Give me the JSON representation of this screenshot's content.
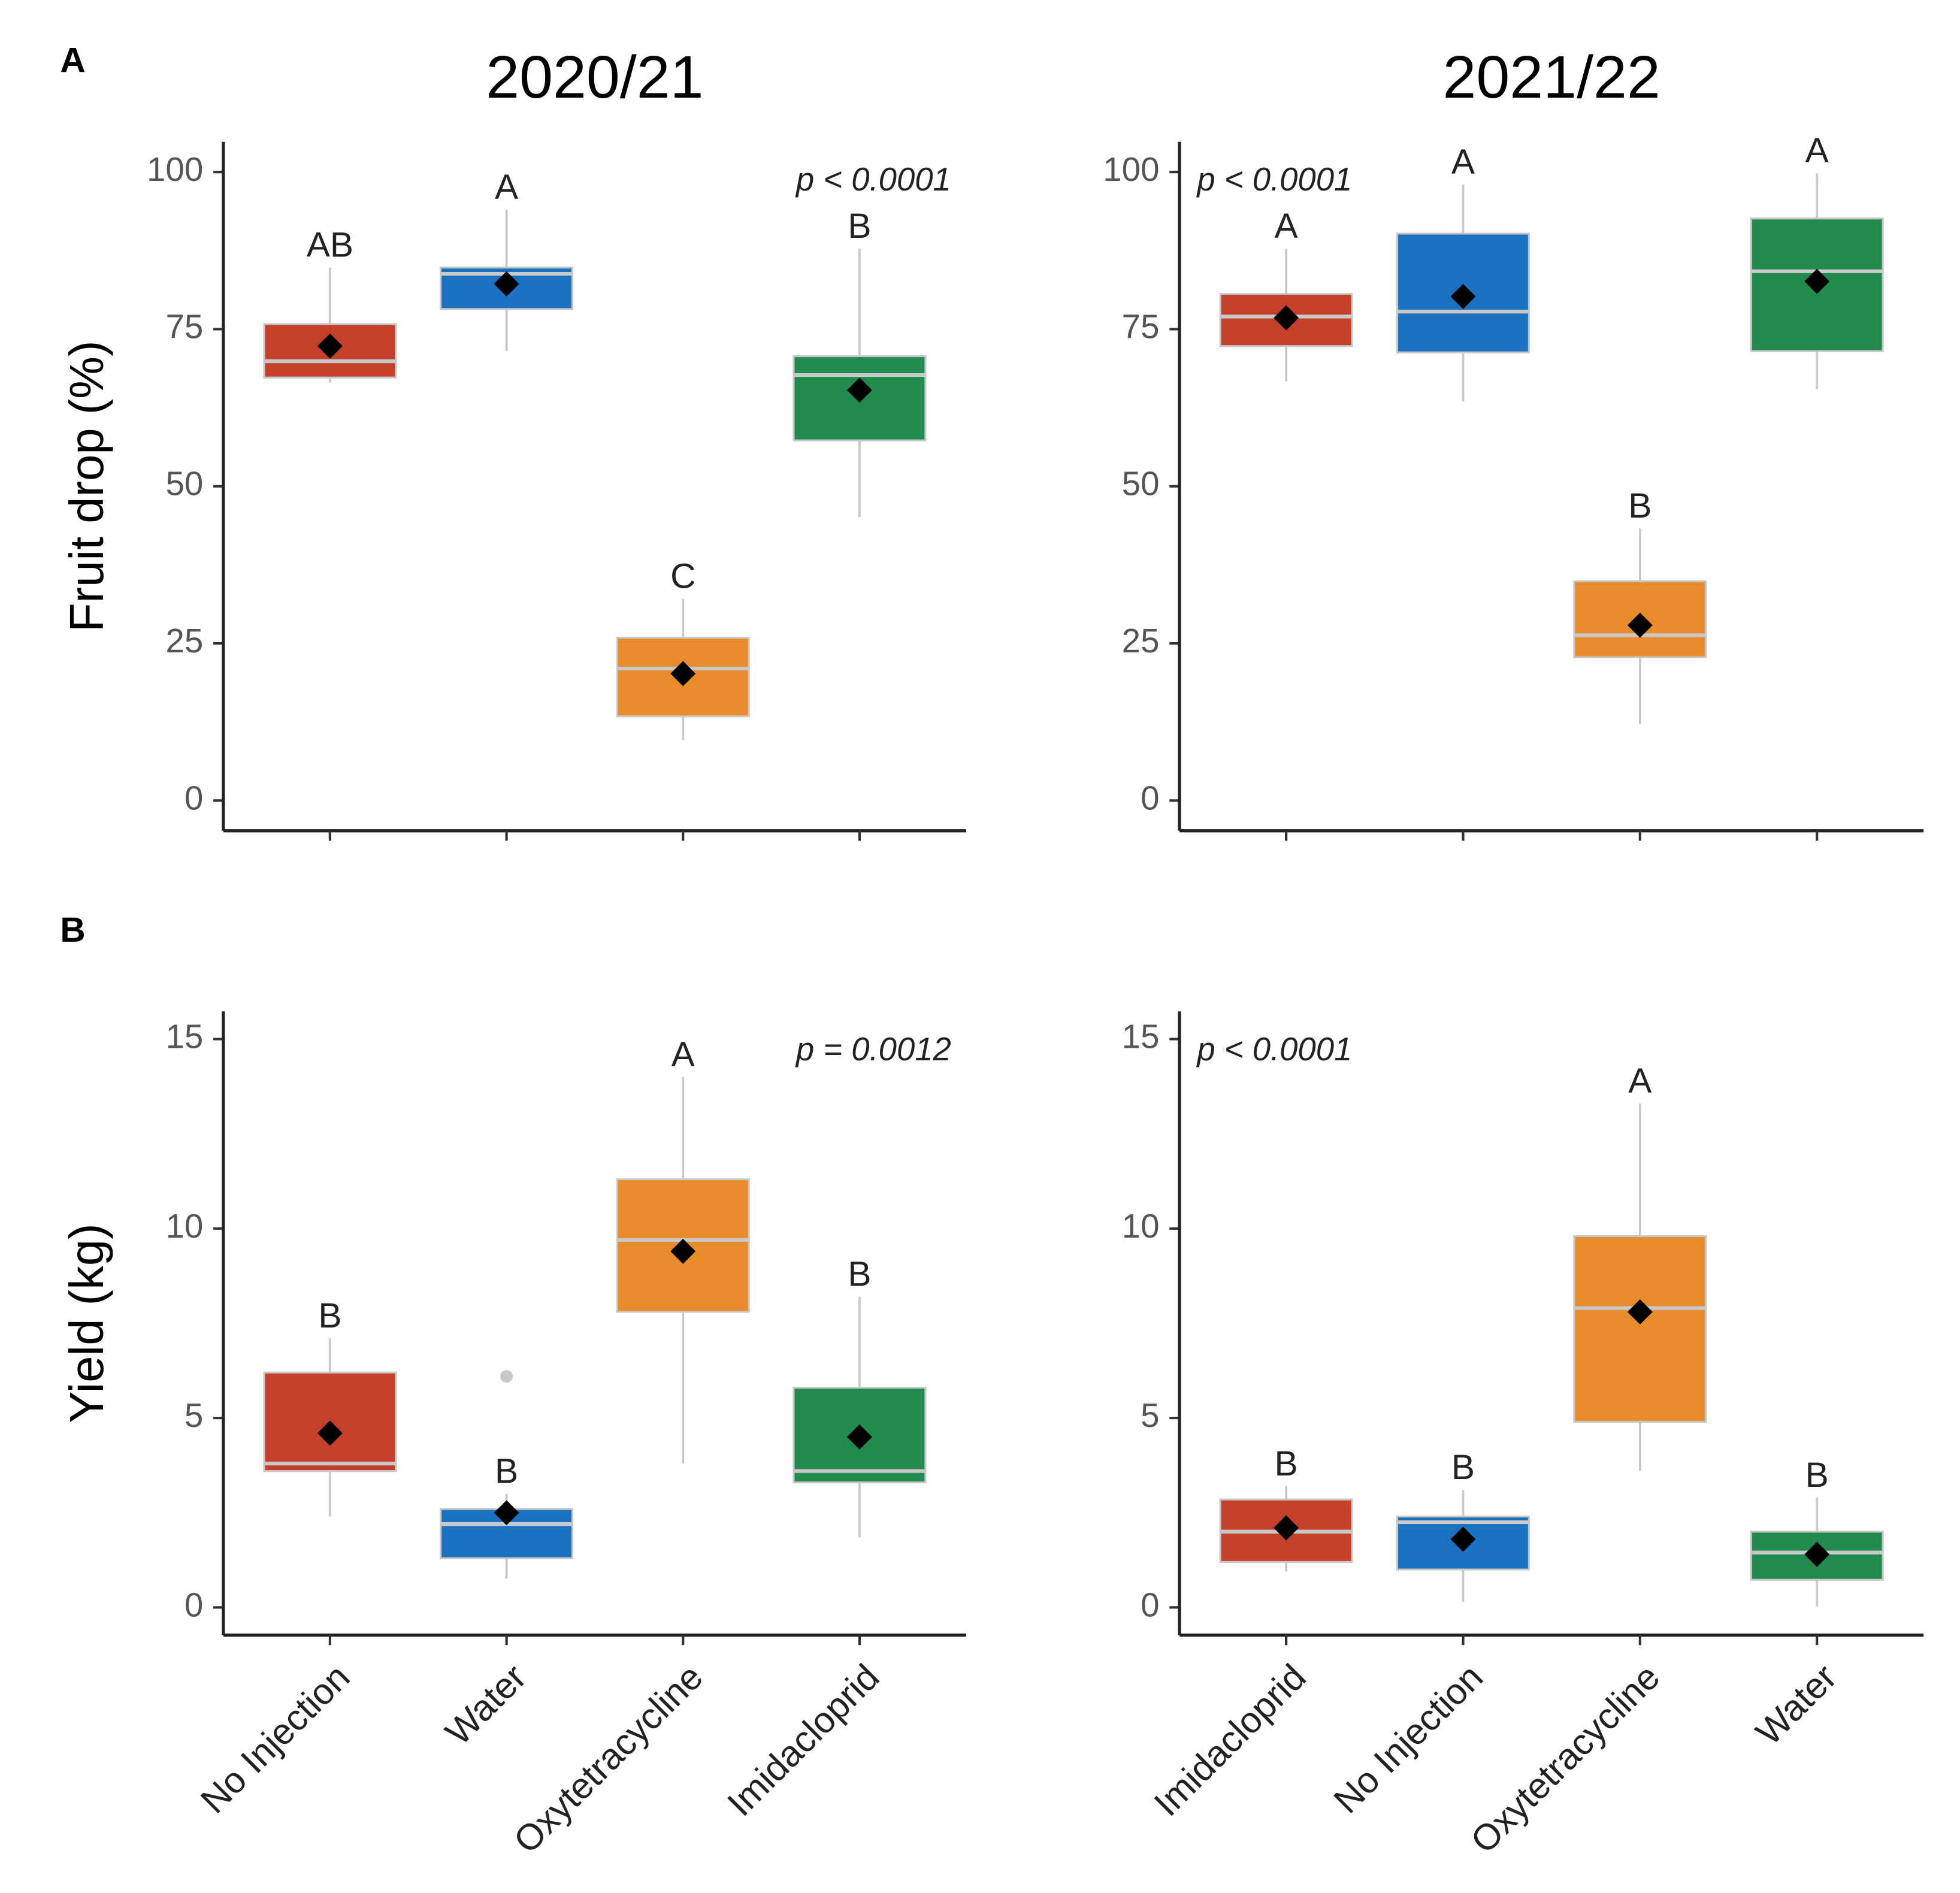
{
  "chart_data": [
    {
      "type": "box",
      "panel_label": "A",
      "title": "2020/21",
      "ylabel": "Fruit drop (%)",
      "annotation": "p < 0.0001",
      "annotation_corner": "top-right",
      "ylim": [
        -4.8,
        104.8
      ],
      "yticks": [
        0,
        25,
        50,
        75,
        100
      ],
      "boxes": [
        {
          "color": "#c4402a",
          "q1": 67.3,
          "median": 69.9,
          "q3": 75.8,
          "whisker_low": 66.5,
          "whisker_high": 84.8,
          "mean": 72.3,
          "letter": "AB"
        },
        {
          "color": "#1a72c0",
          "q1": 78.2,
          "median": 83.8,
          "q3": 84.8,
          "whisker_low": 71.5,
          "whisker_high": 94,
          "mean": 82.2,
          "letter": "A"
        },
        {
          "color": "#e88b2a",
          "q1": 13.4,
          "median": 21.0,
          "q3": 25.9,
          "whisker_low": 9.6,
          "whisker_high": 32.1,
          "mean": 20.2,
          "letter": "C"
        },
        {
          "color": "#218a4e",
          "q1": 57.3,
          "median": 67.7,
          "q3": 70.7,
          "whisker_low": 45.1,
          "whisker_high": 87.8,
          "mean": 65.3,
          "letter": "B"
        }
      ]
    },
    {
      "type": "box",
      "title": "2021/22",
      "annotation": "p < 0.0001",
      "annotation_corner": "top-left",
      "ylim": [
        -4.8,
        104.8
      ],
      "yticks": [
        0,
        25,
        50,
        75,
        100
      ],
      "boxes": [
        {
          "color": "#c4402a",
          "q1": 72.3,
          "median": 77.0,
          "q3": 80.6,
          "whisker_low": 66.7,
          "whisker_high": 87.8,
          "mean": 76.8,
          "letter": "A"
        },
        {
          "color": "#1a72c0",
          "q1": 71.3,
          "median": 77.8,
          "q3": 90.2,
          "whisker_low": 63.5,
          "whisker_high": 98,
          "mean": 80.2,
          "letter": "A"
        },
        {
          "color": "#e88b2a",
          "q1": 22.8,
          "median": 26.3,
          "q3": 34.9,
          "whisker_low": 12.2,
          "whisker_high": 43.3,
          "mean": 27.9,
          "letter": "B"
        },
        {
          "color": "#218a4e",
          "q1": 71.5,
          "median": 84.2,
          "q3": 92.6,
          "whisker_low": 65.5,
          "whisker_high": 99.8,
          "mean": 82.6,
          "letter": "A"
        }
      ]
    },
    {
      "type": "box",
      "panel_label": "B",
      "ylabel": "Yield (kg)",
      "annotation": "p = 0.0012",
      "annotation_corner": "top-right",
      "ylim": [
        -0.73,
        15.73
      ],
      "yticks": [
        0,
        5,
        10,
        15
      ],
      "categories": [
        "No Injection",
        "Water",
        "Oxytetracycline",
        "Imidacloprid"
      ],
      "boxes": [
        {
          "color": "#c4402a",
          "q1": 3.6,
          "median": 3.8,
          "q3": 6.2,
          "whisker_low": 2.4,
          "whisker_high": 7.1,
          "mean": 4.6,
          "letter": "B"
        },
        {
          "color": "#1a72c0",
          "q1": 1.3,
          "median": 2.2,
          "q3": 2.6,
          "whisker_low": 0.76,
          "whisker_high": 3.0,
          "mean": 2.5,
          "letter": "B",
          "outliers": [
            6.1
          ]
        },
        {
          "color": "#e88b2a",
          "q1": 7.8,
          "median": 9.7,
          "q3": 11.3,
          "whisker_low": 3.8,
          "whisker_high": 14.0,
          "mean": 9.4,
          "letter": "A"
        },
        {
          "color": "#218a4e",
          "q1": 3.3,
          "median": 3.6,
          "q3": 5.8,
          "whisker_low": 1.85,
          "whisker_high": 8.2,
          "mean": 4.5,
          "letter": "B"
        }
      ]
    },
    {
      "type": "box",
      "annotation": "p < 0.0001",
      "annotation_corner": "top-left",
      "ylim": [
        -0.73,
        15.73
      ],
      "yticks": [
        0,
        5,
        10,
        15
      ],
      "categories": [
        "Imidacloprid",
        "No Injection",
        "Oxytetracycline",
        "Water"
      ],
      "boxes": [
        {
          "color": "#c4402a",
          "q1": 1.2,
          "median": 2.0,
          "q3": 2.85,
          "whisker_low": 0.95,
          "whisker_high": 3.2,
          "mean": 2.1,
          "letter": "B"
        },
        {
          "color": "#1a72c0",
          "q1": 1.0,
          "median": 2.25,
          "q3": 2.4,
          "whisker_low": 0.15,
          "whisker_high": 3.1,
          "mean": 1.8,
          "letter": "B"
        },
        {
          "color": "#e88b2a",
          "q1": 4.9,
          "median": 7.9,
          "q3": 9.8,
          "whisker_low": 3.6,
          "whisker_high": 13.3,
          "mean": 7.8,
          "letter": "A"
        },
        {
          "color": "#218a4e",
          "q1": 0.73,
          "median": 1.45,
          "q3": 2.0,
          "whisker_low": 0.03,
          "whisker_high": 2.9,
          "mean": 1.4,
          "letter": "B"
        }
      ]
    }
  ]
}
